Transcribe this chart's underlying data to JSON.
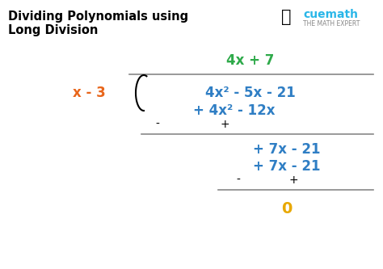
{
  "title_line1": "Dividing Polynomials using",
  "title_line2": "Long Division",
  "title_color": "#000000",
  "bg_color": "#ffffff",
  "blue": "#2f7ec4",
  "orange": "#e8651a",
  "green": "#2eaa4a",
  "gold": "#e8a800",
  "gray": "#888888",
  "cuemath_color": "#29b6e8",
  "quotient": "4x + 7",
  "divisor": "x - 3",
  "dividend": "4x² - 5x - 21",
  "sub1": "+ 4x² - 12x",
  "signs1_minus": "-",
  "signs1_plus": "+",
  "remainder1": "+ 7x - 21",
  "sub2": "+ 7x - 21",
  "signs2_minus": "-",
  "signs2_plus": "+",
  "remainder_final": "0",
  "cuemath_text": "cuemath",
  "cuemath_sub": "THE MATH EXPERT"
}
